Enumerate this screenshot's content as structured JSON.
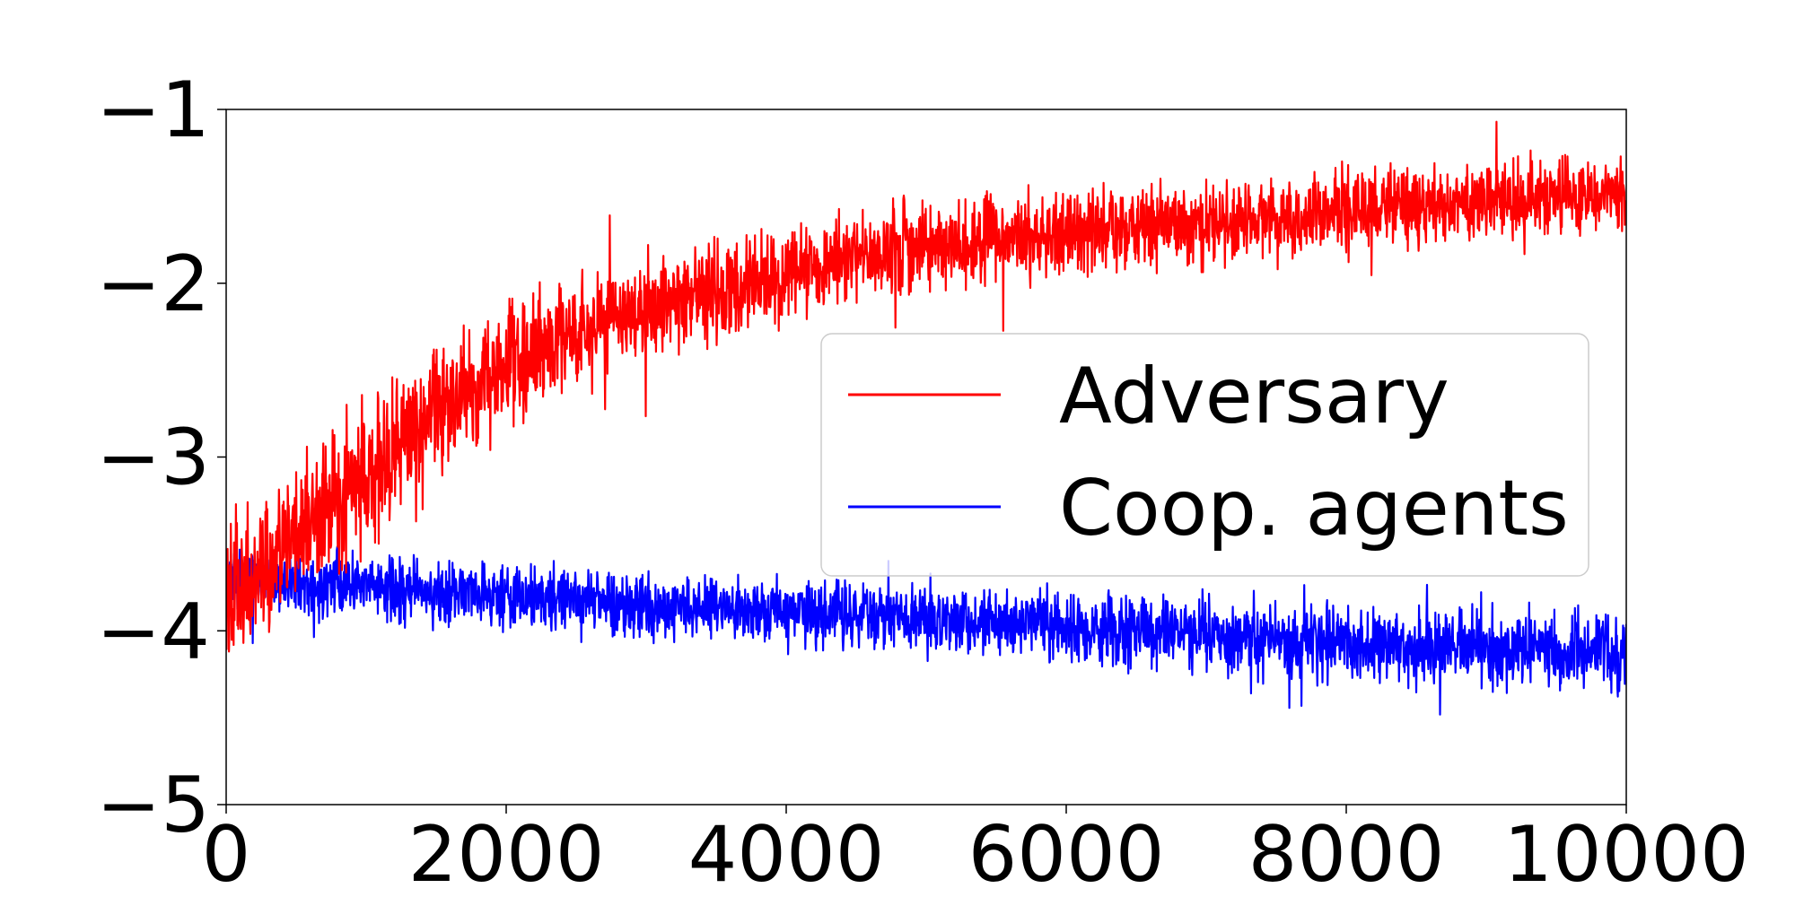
{
  "chart_data": {
    "type": "line",
    "title": "",
    "xlabel": "",
    "ylabel": "",
    "xlim": [
      0,
      10000
    ],
    "ylim": [
      -5,
      -1
    ],
    "xticks": [
      0,
      2000,
      4000,
      6000,
      8000,
      10000
    ],
    "xtick_labels": [
      "0",
      "2000",
      "4000",
      "6000",
      "8000",
      "10000"
    ],
    "yticks": [
      -1,
      -2,
      -3,
      -4,
      -5
    ],
    "ytick_labels": [
      "−1",
      "−2",
      "−3",
      "−4",
      "−5"
    ],
    "grid": false,
    "legend_position": "center-right",
    "series": [
      {
        "name": "Adversary",
        "color": "#ff0000",
        "x": [
          0,
          500,
          1000,
          1500,
          2000,
          2500,
          3000,
          3500,
          4000,
          4500,
          5000,
          5500,
          6000,
          6500,
          7000,
          7500,
          8000,
          8500,
          9000,
          9500,
          10000
        ],
        "mean": [
          -3.9,
          -3.45,
          -3.1,
          -2.75,
          -2.5,
          -2.3,
          -2.15,
          -2.05,
          -1.95,
          -1.85,
          -1.8,
          -1.75,
          -1.72,
          -1.68,
          -1.65,
          -1.62,
          -1.58,
          -1.55,
          -1.52,
          -1.5,
          -1.48
        ],
        "spread": [
          0.55,
          0.55,
          0.55,
          0.55,
          0.5,
          0.45,
          0.42,
          0.4,
          0.38,
          0.36,
          0.35,
          0.35,
          0.34,
          0.33,
          0.33,
          0.32,
          0.32,
          0.32,
          0.32,
          0.32,
          0.32
        ]
      },
      {
        "name": "Coop. agents",
        "color": "#0000ff",
        "x": [
          0,
          500,
          1000,
          1500,
          2000,
          2500,
          3000,
          3500,
          4000,
          4500,
          5000,
          5500,
          6000,
          6500,
          7000,
          7500,
          8000,
          8500,
          9000,
          9500,
          10000
        ],
        "mean": [
          -3.7,
          -3.72,
          -3.75,
          -3.78,
          -3.8,
          -3.82,
          -3.85,
          -3.86,
          -3.88,
          -3.9,
          -3.93,
          -3.96,
          -3.98,
          -4.0,
          -4.02,
          -4.05,
          -4.07,
          -4.09,
          -4.1,
          -4.12,
          -4.14
        ],
        "spread": [
          0.25,
          0.25,
          0.25,
          0.25,
          0.25,
          0.25,
          0.25,
          0.25,
          0.26,
          0.27,
          0.28,
          0.28,
          0.29,
          0.29,
          0.3,
          0.3,
          0.3,
          0.3,
          0.3,
          0.3,
          0.3
        ]
      }
    ]
  },
  "legend": {
    "items": [
      {
        "label": "Adversary",
        "color": "#ff0000"
      },
      {
        "label": "Coop. agents",
        "color": "#0000ff"
      }
    ]
  }
}
